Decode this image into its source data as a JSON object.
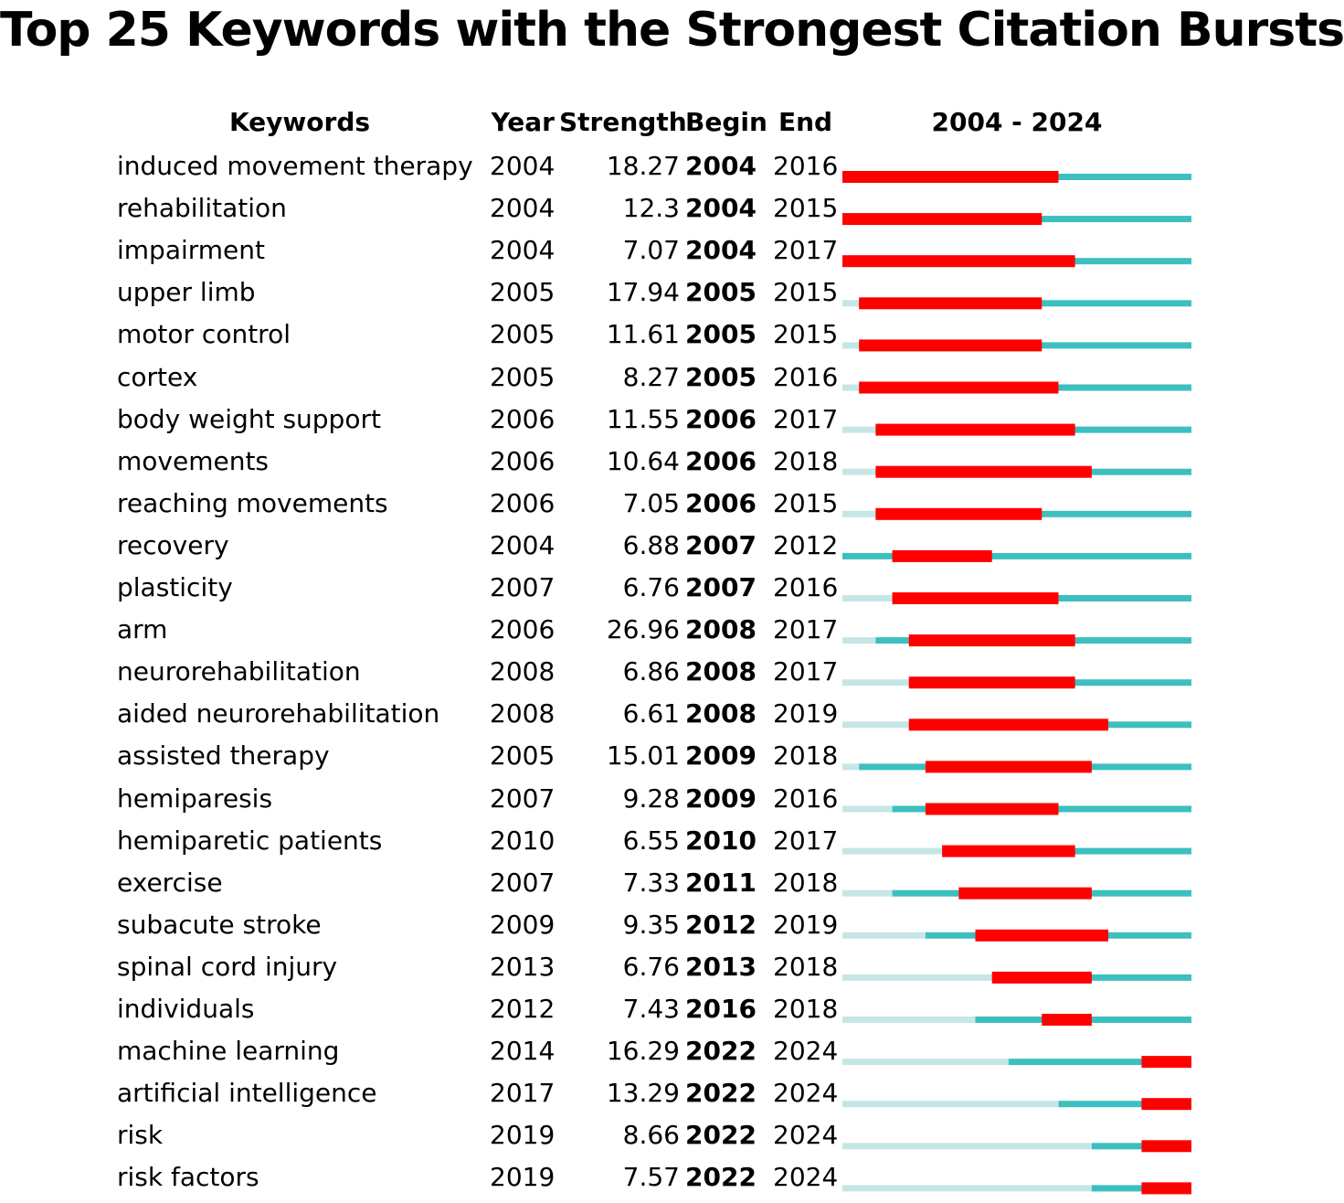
{
  "title": "Top 25 Keywords with the Strongest Citation Bursts",
  "headers": {
    "keywords": "Keywords",
    "year": "Year",
    "strength": "Strength",
    "begin": "Begin",
    "end": "End",
    "range": "2004 - 2024"
  },
  "colors": {
    "burst": "#ff0000",
    "active": "#3dbfbf",
    "inactive": "#c6e6e6",
    "text": "#000000"
  },
  "chart_data": {
    "type": "table",
    "title": "Top 25 Keywords with the Strongest Citation Bursts",
    "timeline": [
      2004,
      2024
    ],
    "rows": [
      {
        "keyword": "induced movement therapy",
        "year": "2004",
        "strength": "18.27",
        "begin": "2004",
        "end": "2016"
      },
      {
        "keyword": "rehabilitation",
        "year": "2004",
        "strength": "12.3",
        "begin": "2004",
        "end": "2015"
      },
      {
        "keyword": "impairment",
        "year": "2004",
        "strength": "7.07",
        "begin": "2004",
        "end": "2017"
      },
      {
        "keyword": "upper limb",
        "year": "2005",
        "strength": "17.94",
        "begin": "2005",
        "end": "2015"
      },
      {
        "keyword": "motor control",
        "year": "2005",
        "strength": "11.61",
        "begin": "2005",
        "end": "2015"
      },
      {
        "keyword": "cortex",
        "year": "2005",
        "strength": "8.27",
        "begin": "2005",
        "end": "2016"
      },
      {
        "keyword": "body weight support",
        "year": "2006",
        "strength": "11.55",
        "begin": "2006",
        "end": "2017"
      },
      {
        "keyword": "movements",
        "year": "2006",
        "strength": "10.64",
        "begin": "2006",
        "end": "2018"
      },
      {
        "keyword": "reaching movements",
        "year": "2006",
        "strength": "7.05",
        "begin": "2006",
        "end": "2015"
      },
      {
        "keyword": "recovery",
        "year": "2004",
        "strength": "6.88",
        "begin": "2007",
        "end": "2012"
      },
      {
        "keyword": "plasticity",
        "year": "2007",
        "strength": "6.76",
        "begin": "2007",
        "end": "2016"
      },
      {
        "keyword": "arm",
        "year": "2006",
        "strength": "26.96",
        "begin": "2008",
        "end": "2017"
      },
      {
        "keyword": "neurorehabilitation",
        "year": "2008",
        "strength": "6.86",
        "begin": "2008",
        "end": "2017"
      },
      {
        "keyword": "aided neurorehabilitation",
        "year": "2008",
        "strength": "6.61",
        "begin": "2008",
        "end": "2019"
      },
      {
        "keyword": "assisted therapy",
        "year": "2005",
        "strength": "15.01",
        "begin": "2009",
        "end": "2018"
      },
      {
        "keyword": "hemiparesis",
        "year": "2007",
        "strength": "9.28",
        "begin": "2009",
        "end": "2016"
      },
      {
        "keyword": "hemiparetic patients",
        "year": "2010",
        "strength": "6.55",
        "begin": "2010",
        "end": "2017"
      },
      {
        "keyword": "exercise",
        "year": "2007",
        "strength": "7.33",
        "begin": "2011",
        "end": "2018"
      },
      {
        "keyword": "subacute stroke",
        "year": "2009",
        "strength": "9.35",
        "begin": "2012",
        "end": "2019"
      },
      {
        "keyword": "spinal cord injury",
        "year": "2013",
        "strength": "6.76",
        "begin": "2013",
        "end": "2018"
      },
      {
        "keyword": "individuals",
        "year": "2012",
        "strength": "7.43",
        "begin": "2016",
        "end": "2018"
      },
      {
        "keyword": "machine learning",
        "year": "2014",
        "strength": "16.29",
        "begin": "2022",
        "end": "2024"
      },
      {
        "keyword": "artificial intelligence",
        "year": "2017",
        "strength": "13.29",
        "begin": "2022",
        "end": "2024"
      },
      {
        "keyword": "risk",
        "year": "2019",
        "strength": "8.66",
        "begin": "2022",
        "end": "2024"
      },
      {
        "keyword": "risk factors",
        "year": "2019",
        "strength": "7.57",
        "begin": "2022",
        "end": "2024"
      }
    ]
  }
}
